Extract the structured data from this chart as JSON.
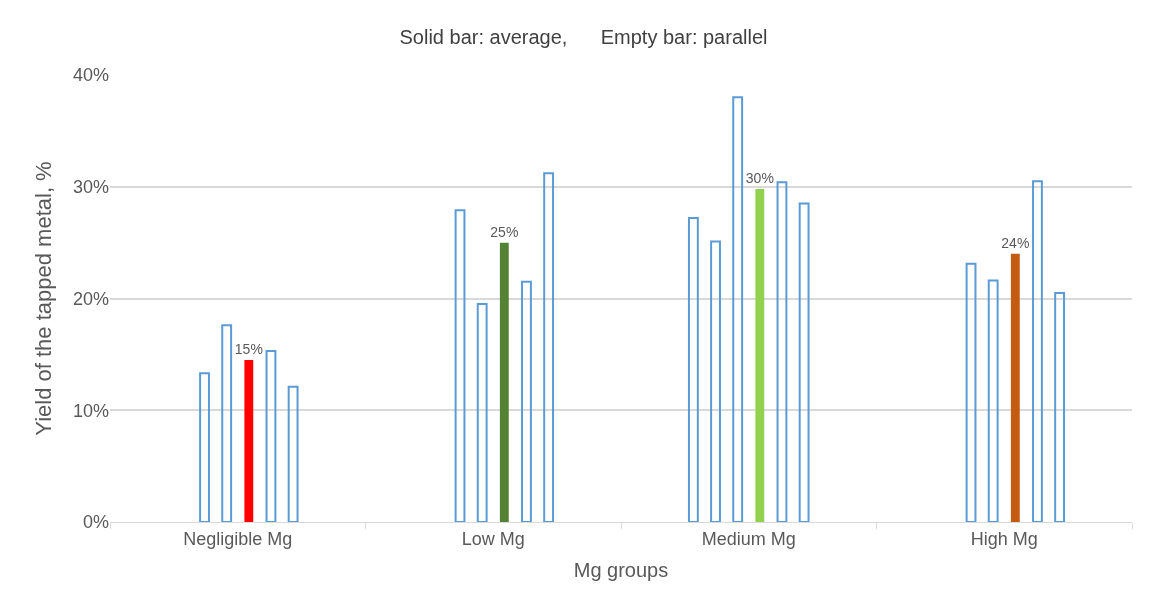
{
  "chart_data": {
    "type": "bar",
    "title": "Solid bar: average,      Empty bar: parallel",
    "xlabel": "Mg groups",
    "ylabel": "Yield of the tapped metal, %",
    "categories": [
      "Negligible Mg",
      "Low Mg",
      "Medium Mg",
      "High Mg"
    ],
    "series": [
      {
        "color": "#5b9bd5",
        "values": [
          null,
          null,
          27.2,
          null
        ]
      },
      {
        "color": "#5b9bd5",
        "values": [
          13.3,
          27.9,
          25.1,
          23.1
        ]
      },
      {
        "color": "#5b9bd5",
        "values": [
          17.6,
          19.5,
          38.0,
          21.6
        ]
      },
      {
        "colors": [
          "#ff0000",
          "#548235",
          "#92d050",
          "#c55a11"
        ],
        "values": [
          14.5,
          25.0,
          29.8,
          24.0
        ],
        "value_labels": [
          "15%",
          "25%",
          "30%",
          "24%"
        ]
      },
      {
        "color": "#5b9bd5",
        "values": [
          15.3,
          21.5,
          30.4,
          30.5
        ]
      },
      {
        "color": "#5b9bd5",
        "values": [
          12.1,
          31.2,
          28.5,
          20.5
        ]
      }
    ],
    "ylim": [
      0,
      40
    ],
    "yticks": [
      {
        "value": 0,
        "label": "0%"
      },
      {
        "value": 10,
        "label": "10%"
      },
      {
        "value": 20,
        "label": "20%"
      },
      {
        "value": 30,
        "label": "30%"
      },
      {
        "value": 40,
        "label": "40%"
      }
    ],
    "grid": "y"
  }
}
